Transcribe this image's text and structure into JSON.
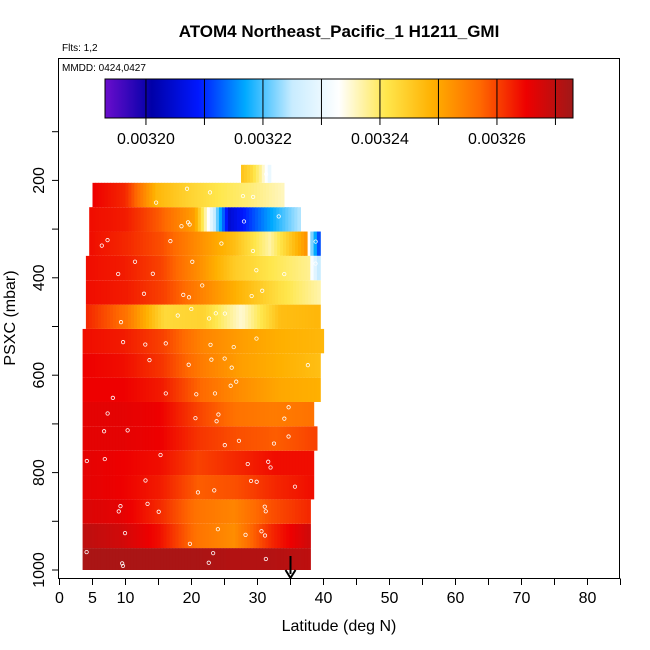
{
  "chart_data": {
    "type": "heatmap",
    "title": "ATOM4 Northeast_Pacific_1 H1211_GMI",
    "flights_label": "Flts: 1,2",
    "mmdd_label": "MMDD: 0424,0427",
    "xlabel": "Latitude (deg N)",
    "ylabel": "PSXC (mbar)",
    "xlim": [
      0,
      85
    ],
    "ylim": [
      1000,
      0
    ],
    "x_ticks": [
      0,
      5,
      10,
      20,
      30,
      40,
      50,
      60,
      70,
      80
    ],
    "x_tick_labels": [
      "0",
      "5",
      "10",
      "20",
      "30",
      "40",
      "50",
      "60",
      "70",
      "80"
    ],
    "y_ticks": [
      200,
      400,
      600,
      800,
      1000
    ],
    "y_tick_labels": [
      "200",
      "400",
      "600",
      "800",
      "1000"
    ],
    "colorbar": {
      "min": 0.003193,
      "max": 0.003273,
      "tick_values": [
        0.0032,
        0.00322,
        0.00324,
        0.00326
      ],
      "tick_labels": [
        "0.00320",
        "0.00322",
        "0.00324",
        "0.00326"
      ],
      "colors": [
        "#6a0dcc",
        "#0000a8",
        "#0018ff",
        "#00aaff",
        "#c8ecff",
        "#ffffff",
        "#ffe74d",
        "#ffb000",
        "#ff6a00",
        "#ee0000",
        "#a01818"
      ]
    },
    "arrow_marker_latitude": 35,
    "grid": false,
    "bands": [
      {
        "p_top": 955,
        "p_bottom": 1000,
        "lat_start": 3.5,
        "lat_end": 38,
        "values": [
          0.003272,
          0.003272,
          0.003272,
          0.003272,
          0.003271,
          0.003271,
          0.00327
        ]
      },
      {
        "p_top": 905,
        "p_bottom": 955,
        "lat_start": 3.5,
        "lat_end": 38,
        "values": [
          0.00327,
          0.003268,
          0.003264,
          0.003256,
          0.003253,
          0.003262,
          0.003268
        ]
      },
      {
        "p_top": 855,
        "p_bottom": 905,
        "lat_start": 3.5,
        "lat_end": 38,
        "values": [
          0.003267,
          0.003266,
          0.003262,
          0.003256,
          0.003254,
          0.003259,
          0.003262
        ]
      },
      {
        "p_top": 805,
        "p_bottom": 855,
        "lat_start": 3.5,
        "lat_end": 38.5,
        "values": [
          0.003266,
          0.003265,
          0.003263,
          0.003258,
          0.003259,
          0.003262,
          0.003264
        ]
      },
      {
        "p_top": 755,
        "p_bottom": 805,
        "lat_start": 3.5,
        "lat_end": 38.5,
        "values": [
          0.003266,
          0.003265,
          0.003264,
          0.00326,
          0.003262,
          0.003264,
          0.003264
        ]
      },
      {
        "p_top": 705,
        "p_bottom": 755,
        "lat_start": 3.5,
        "lat_end": 39,
        "values": [
          0.003266,
          0.003266,
          0.003265,
          0.003261,
          0.003259,
          0.003258,
          0.00326
        ]
      },
      {
        "p_top": 655,
        "p_bottom": 705,
        "lat_start": 3.5,
        "lat_end": 38.5,
        "values": [
          0.003266,
          0.003266,
          0.003265,
          0.00326,
          0.003256,
          0.003255,
          0.003256
        ]
      },
      {
        "p_top": 605,
        "p_bottom": 655,
        "lat_start": 3.5,
        "lat_end": 39.5,
        "values": [
          0.003265,
          0.003265,
          0.003263,
          0.003257,
          0.003253,
          0.00325,
          0.003249
        ]
      },
      {
        "p_top": 555,
        "p_bottom": 605,
        "lat_start": 3.5,
        "lat_end": 39.5,
        "values": [
          0.003265,
          0.003264,
          0.003261,
          0.003255,
          0.003251,
          0.003249,
          0.003247
        ]
      },
      {
        "p_top": 505,
        "p_bottom": 555,
        "lat_start": 3.5,
        "lat_end": 40,
        "values": [
          0.003264,
          0.003263,
          0.00326,
          0.003254,
          0.003251,
          0.003249,
          0.003248
        ]
      },
      {
        "p_top": 455,
        "p_bottom": 505,
        "lat_start": 4,
        "lat_end": 39.5,
        "values": [
          0.003262,
          0.003256,
          0.003243,
          0.003244,
          0.003235,
          0.003247,
          0.003248
        ]
      },
      {
        "p_top": 405,
        "p_bottom": 455,
        "lat_start": 4,
        "lat_end": 39.5,
        "values": [
          0.003264,
          0.003263,
          0.00326,
          0.003254,
          0.003248,
          0.003242,
          0.003237
        ]
      },
      {
        "p_top": 355,
        "p_bottom": 405,
        "lat_start": 4,
        "lat_end": 38,
        "values": [
          0.003264,
          0.003263,
          0.00326,
          0.003253,
          0.003245,
          0.003241,
          0.003238
        ]
      },
      {
        "p_top": 305,
        "p_bottom": 355,
        "lat_start": 4.5,
        "lat_end": 37.5,
        "values": [
          0.003264,
          0.003262,
          0.003259,
          0.003253,
          0.003247,
          0.003237,
          0.003252
        ]
      },
      {
        "p_top": 255,
        "p_bottom": 305,
        "lat_start": 4.5,
        "lat_end": 36.5,
        "values": [
          0.003264,
          0.003263,
          0.003258,
          0.003251,
          0.003205,
          0.003215,
          0.003224
        ]
      },
      {
        "p_top": 205,
        "p_bottom": 255,
        "lat_start": 5,
        "lat_end": 34,
        "values": [
          0.003265,
          0.003262,
          0.003248,
          0.003244,
          0.003241,
          0.003239,
          0.003236
        ]
      },
      {
        "p_top": 168,
        "p_bottom": 205,
        "lat_start": 27.5,
        "lat_end": 32,
        "values": [
          0.003246,
          0.003243,
          0.003238,
          0.00323
        ]
      },
      {
        "p_top": 305,
        "p_bottom": 355,
        "lat_start": 38,
        "lat_end": 39.5,
        "values": [
          0.003222,
          0.003212
        ]
      },
      {
        "p_top": 355,
        "p_bottom": 405,
        "lat_start": 38,
        "lat_end": 39.5,
        "values": [
          0.003232,
          0.003225
        ]
      }
    ]
  }
}
